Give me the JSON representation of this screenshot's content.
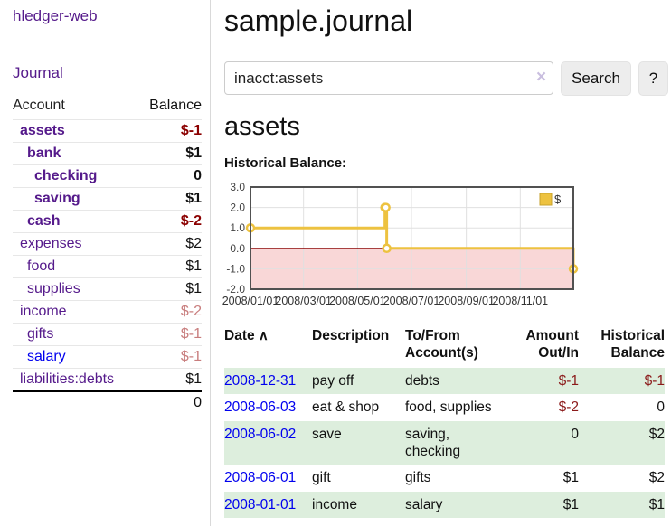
{
  "app": {
    "title": "hledger-web"
  },
  "sidebar": {
    "nav_journal": "Journal",
    "accounts_header": {
      "account": "Account",
      "balance": "Balance"
    },
    "accounts": [
      {
        "name": "assets",
        "balance": "$-1"
      },
      {
        "name": "bank",
        "balance": "$1"
      },
      {
        "name": "checking",
        "balance": "0"
      },
      {
        "name": "saving",
        "balance": "$1"
      },
      {
        "name": "cash",
        "balance": "$-2"
      },
      {
        "name": "expenses",
        "balance": "$2"
      },
      {
        "name": "food",
        "balance": "$1"
      },
      {
        "name": "supplies",
        "balance": "$1"
      },
      {
        "name": "income",
        "balance": "$-2"
      },
      {
        "name": "gifts",
        "balance": "$-1"
      },
      {
        "name": "salary",
        "balance": "$-1"
      },
      {
        "name": "liabilities:debts",
        "balance": "$1"
      }
    ],
    "total": "0"
  },
  "header": {
    "title": "sample.journal"
  },
  "search": {
    "value": "inacct:assets",
    "clear_icon": "×",
    "search_label": "Search",
    "help_label": "?"
  },
  "account_page": {
    "title": "assets",
    "chart_label": "Historical Balance:"
  },
  "chart_data": {
    "type": "line",
    "step": true,
    "title": "Historical Balance",
    "series": [
      {
        "name": "$",
        "color": "#edc240",
        "points": [
          [
            "2008-01-01",
            1
          ],
          [
            "2008-06-01",
            2
          ],
          [
            "2008-06-02",
            2
          ],
          [
            "2008-06-03",
            0
          ],
          [
            "2008-12-31",
            -1
          ]
        ]
      }
    ],
    "xlim": [
      "2008-01-01",
      "2008-12-31"
    ],
    "ylim": [
      -2,
      3
    ],
    "yticks": [
      {
        "v": 3,
        "label": "3.0"
      },
      {
        "v": 2,
        "label": "2.0"
      },
      {
        "v": 1,
        "label": "1.0"
      },
      {
        "v": 0,
        "label": "0.0"
      },
      {
        "v": -1,
        "label": "-1.0"
      },
      {
        "v": -2,
        "label": "-2.0"
      }
    ],
    "xticks": [
      {
        "date": "2008-01-01",
        "label": "2008/01/01"
      },
      {
        "date": "2008-03-01",
        "label": "2008/03/01"
      },
      {
        "date": "2008-05-01",
        "label": "2008/05/01"
      },
      {
        "date": "2008-07-01",
        "label": "2008/07/01"
      },
      {
        "date": "2008-09-01",
        "label": "2008/09/01"
      },
      {
        "date": "2008-11-01",
        "label": "2008/11/01"
      }
    ],
    "legend": {
      "label": "$",
      "position": "top-right"
    },
    "grid": true,
    "zero_line_color": "#8b0000",
    "negative_fill": "#f9d7d7",
    "border_color": "#515151"
  },
  "register": {
    "sort_icon": "∧",
    "headers": {
      "date": "Date",
      "description": "Description",
      "accounts": "To/From Account(s)",
      "amount": "Amount Out/In",
      "balance": "Historical Balance"
    },
    "rows": [
      {
        "date": "2008-12-31",
        "description": "pay off",
        "accounts": "debts",
        "amount": "$-1",
        "balance": "$-1"
      },
      {
        "date": "2008-06-03",
        "description": "eat & shop",
        "accounts": "food, supplies",
        "amount": "$-2",
        "balance": "0"
      },
      {
        "date": "2008-06-02",
        "description": "save",
        "accounts": "saving, checking",
        "amount": "0",
        "balance": "$2"
      },
      {
        "date": "2008-06-01",
        "description": "gift",
        "accounts": "gifts",
        "amount": "$1",
        "balance": "$2"
      },
      {
        "date": "2008-01-01",
        "description": "income",
        "accounts": "salary",
        "amount": "$1",
        "balance": "$1"
      }
    ]
  }
}
